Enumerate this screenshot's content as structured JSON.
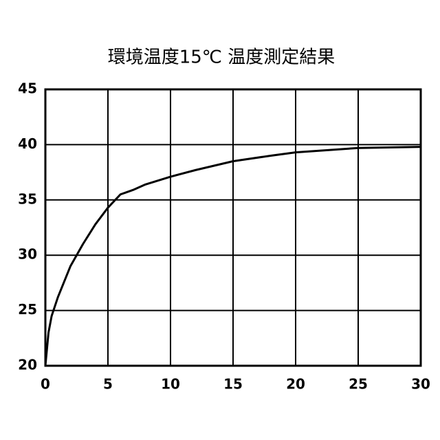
{
  "chart_data": {
    "type": "line",
    "title": "環境温度15℃ 温度測定結果",
    "series": [
      {
        "color": "#000000",
        "x": [
          0,
          0.25,
          0.5,
          1,
          2,
          3,
          4,
          5,
          6,
          6.5,
          7,
          8,
          10,
          12,
          15,
          18,
          20,
          25,
          30
        ],
        "values": [
          20,
          23,
          24.5,
          26.2,
          29,
          31,
          32.8,
          34.3,
          35.5,
          35.7,
          35.9,
          36.4,
          37.1,
          37.7,
          38.5,
          39,
          39.3,
          39.7,
          39.8
        ]
      }
    ],
    "xlim": [
      0,
      30
    ],
    "xticks": [
      0,
      5,
      10,
      15,
      20,
      25,
      30
    ],
    "ylim": [
      20,
      45
    ],
    "yticks": [
      20,
      25,
      30,
      35,
      40,
      45
    ],
    "grid": true
  }
}
